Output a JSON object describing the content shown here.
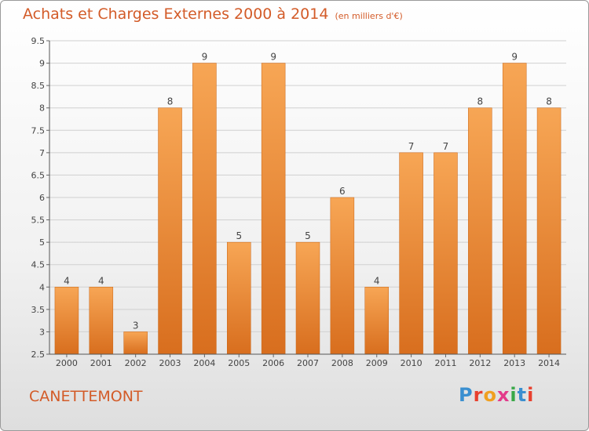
{
  "header": {
    "title": "Achats et Charges Externes 2000 à 2014",
    "unit": "(en milliers d'€)"
  },
  "commune": "CANETTEMONT",
  "logo": {
    "text": "Proxiti",
    "letters": [
      {
        "ch": "P",
        "color": "#3a8fd0"
      },
      {
        "ch": "r",
        "color": "#e8402e"
      },
      {
        "ch": "o",
        "color": "#f0a020"
      },
      {
        "ch": "x",
        "color": "#e33a8a"
      },
      {
        "ch": "i",
        "color": "#39a848"
      },
      {
        "ch": "t",
        "color": "#3a8fd0"
      },
      {
        "ch": "i",
        "color": "#e8402e"
      }
    ]
  },
  "chart_data": {
    "type": "bar",
    "title": "Achats et Charges Externes 2000 à 2014",
    "categories": [
      "2000",
      "2001",
      "2002",
      "2003",
      "2004",
      "2005",
      "2006",
      "2007",
      "2008",
      "2009",
      "2010",
      "2011",
      "2012",
      "2013",
      "2014"
    ],
    "values": [
      4,
      4,
      3,
      8,
      9,
      5,
      9,
      5,
      6,
      4,
      7,
      7,
      8,
      9,
      8
    ],
    "ylim": [
      2.5,
      9.5
    ],
    "yticks": [
      "2.5",
      "3",
      "3.5",
      "4",
      "4.5",
      "5",
      "5.5",
      "6",
      "6.5",
      "7",
      "7.5",
      "8",
      "8.5",
      "9",
      "9.5"
    ],
    "grid": true,
    "bar_color_top": "#f7a655",
    "bar_color_bottom": "#d86e1e"
  }
}
